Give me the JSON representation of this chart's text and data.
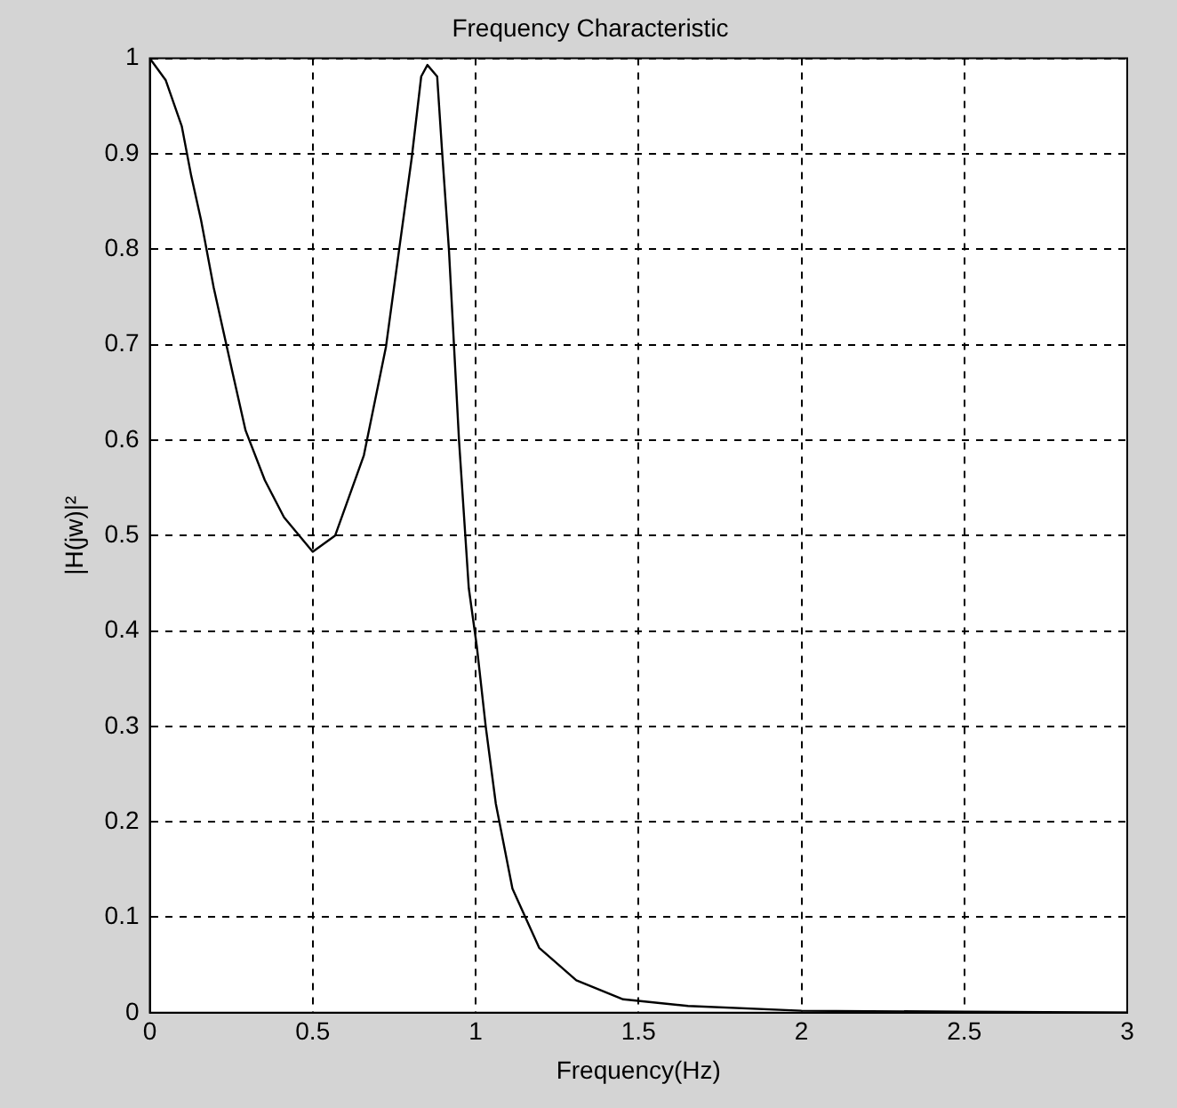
{
  "chart_data": {
    "type": "line",
    "title": "Frequency Characteristic",
    "xlabel": "Frequency(Hz)",
    "ylabel": "|H(jw)|²",
    "x": [
      0,
      0.049,
      0.098,
      0.127,
      0.157,
      0.196,
      0.255,
      0.294,
      0.353,
      0.412,
      0.5,
      0.569,
      0.657,
      0.725,
      0.765,
      0.804,
      0.833,
      0.852,
      0.882,
      0.897,
      0.918,
      0.949,
      0.979,
      1.004,
      1.031,
      1.062,
      1.113,
      1.195,
      1.309,
      1.453,
      1.652,
      2,
      2.5,
      3
    ],
    "series": [
      {
        "color": "#000000",
        "values": [
          1,
          0.977,
          0.929,
          0.877,
          0.831,
          0.76,
          0.669,
          0.61,
          0.558,
          0.519,
          0.483,
          0.5,
          0.584,
          0.698,
          0.799,
          0.896,
          0.981,
          0.993,
          0.981,
          0.903,
          0.8,
          0.6,
          0.445,
          0.383,
          0.3,
          0.219,
          0.13,
          0.068,
          0.034,
          0.014,
          0.007,
          0.002,
          0.001,
          0
        ]
      }
    ],
    "xlim": [
      0,
      3
    ],
    "xticks": [
      0,
      0.5,
      1,
      1.5,
      2,
      2.5,
      3
    ],
    "ylim": [
      0,
      1
    ],
    "yticks": [
      0,
      0.1,
      0.2,
      0.3,
      0.4,
      0.5,
      0.6,
      0.7,
      0.8,
      0.9,
      1
    ],
    "grid": true,
    "legend": false,
    "marker": "none",
    "line_style": "solid"
  }
}
